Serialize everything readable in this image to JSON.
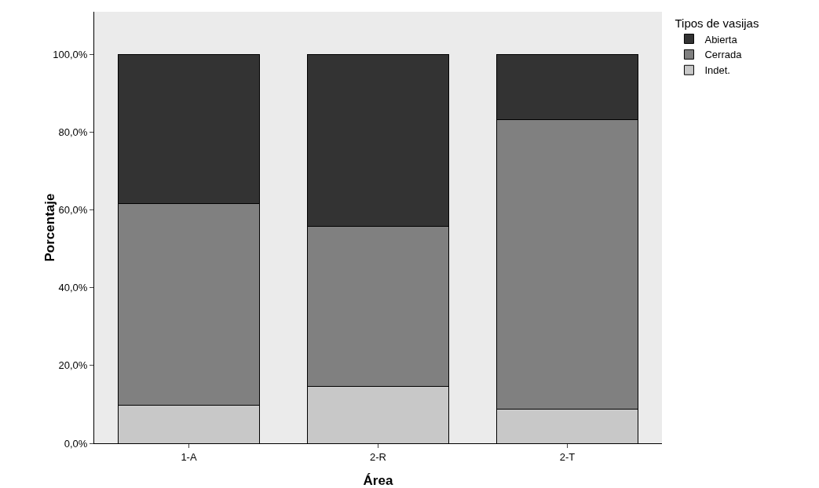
{
  "chart_data": {
    "type": "bar",
    "stacked": true,
    "xlabel": "Área",
    "ylabel": "Porcentaje",
    "legend_title": "Tipos de vasijas",
    "legend": "top right",
    "grid": false,
    "categories": [
      "1-A",
      "2-R",
      "2-T"
    ],
    "ylim": [
      0,
      111
    ],
    "yticks": [
      {
        "value": 0,
        "label": "0,0%"
      },
      {
        "value": 20,
        "label": "20,0%"
      },
      {
        "value": 40,
        "label": "40,0%"
      },
      {
        "value": 60,
        "label": "60,0%"
      },
      {
        "value": 80,
        "label": "80,0%"
      },
      {
        "value": 100,
        "label": "100,0%"
      }
    ],
    "series": [
      {
        "name": "Indet.",
        "color": "#c8c8c8",
        "values": [
          9.7,
          14.6,
          8.7
        ]
      },
      {
        "name": "Cerrada",
        "color": "#808080",
        "values": [
          52,
          41.3,
          74.5
        ]
      },
      {
        "name": "Abierta",
        "color": "#333333",
        "values": [
          38.3,
          44.1,
          16.8
        ]
      }
    ]
  }
}
